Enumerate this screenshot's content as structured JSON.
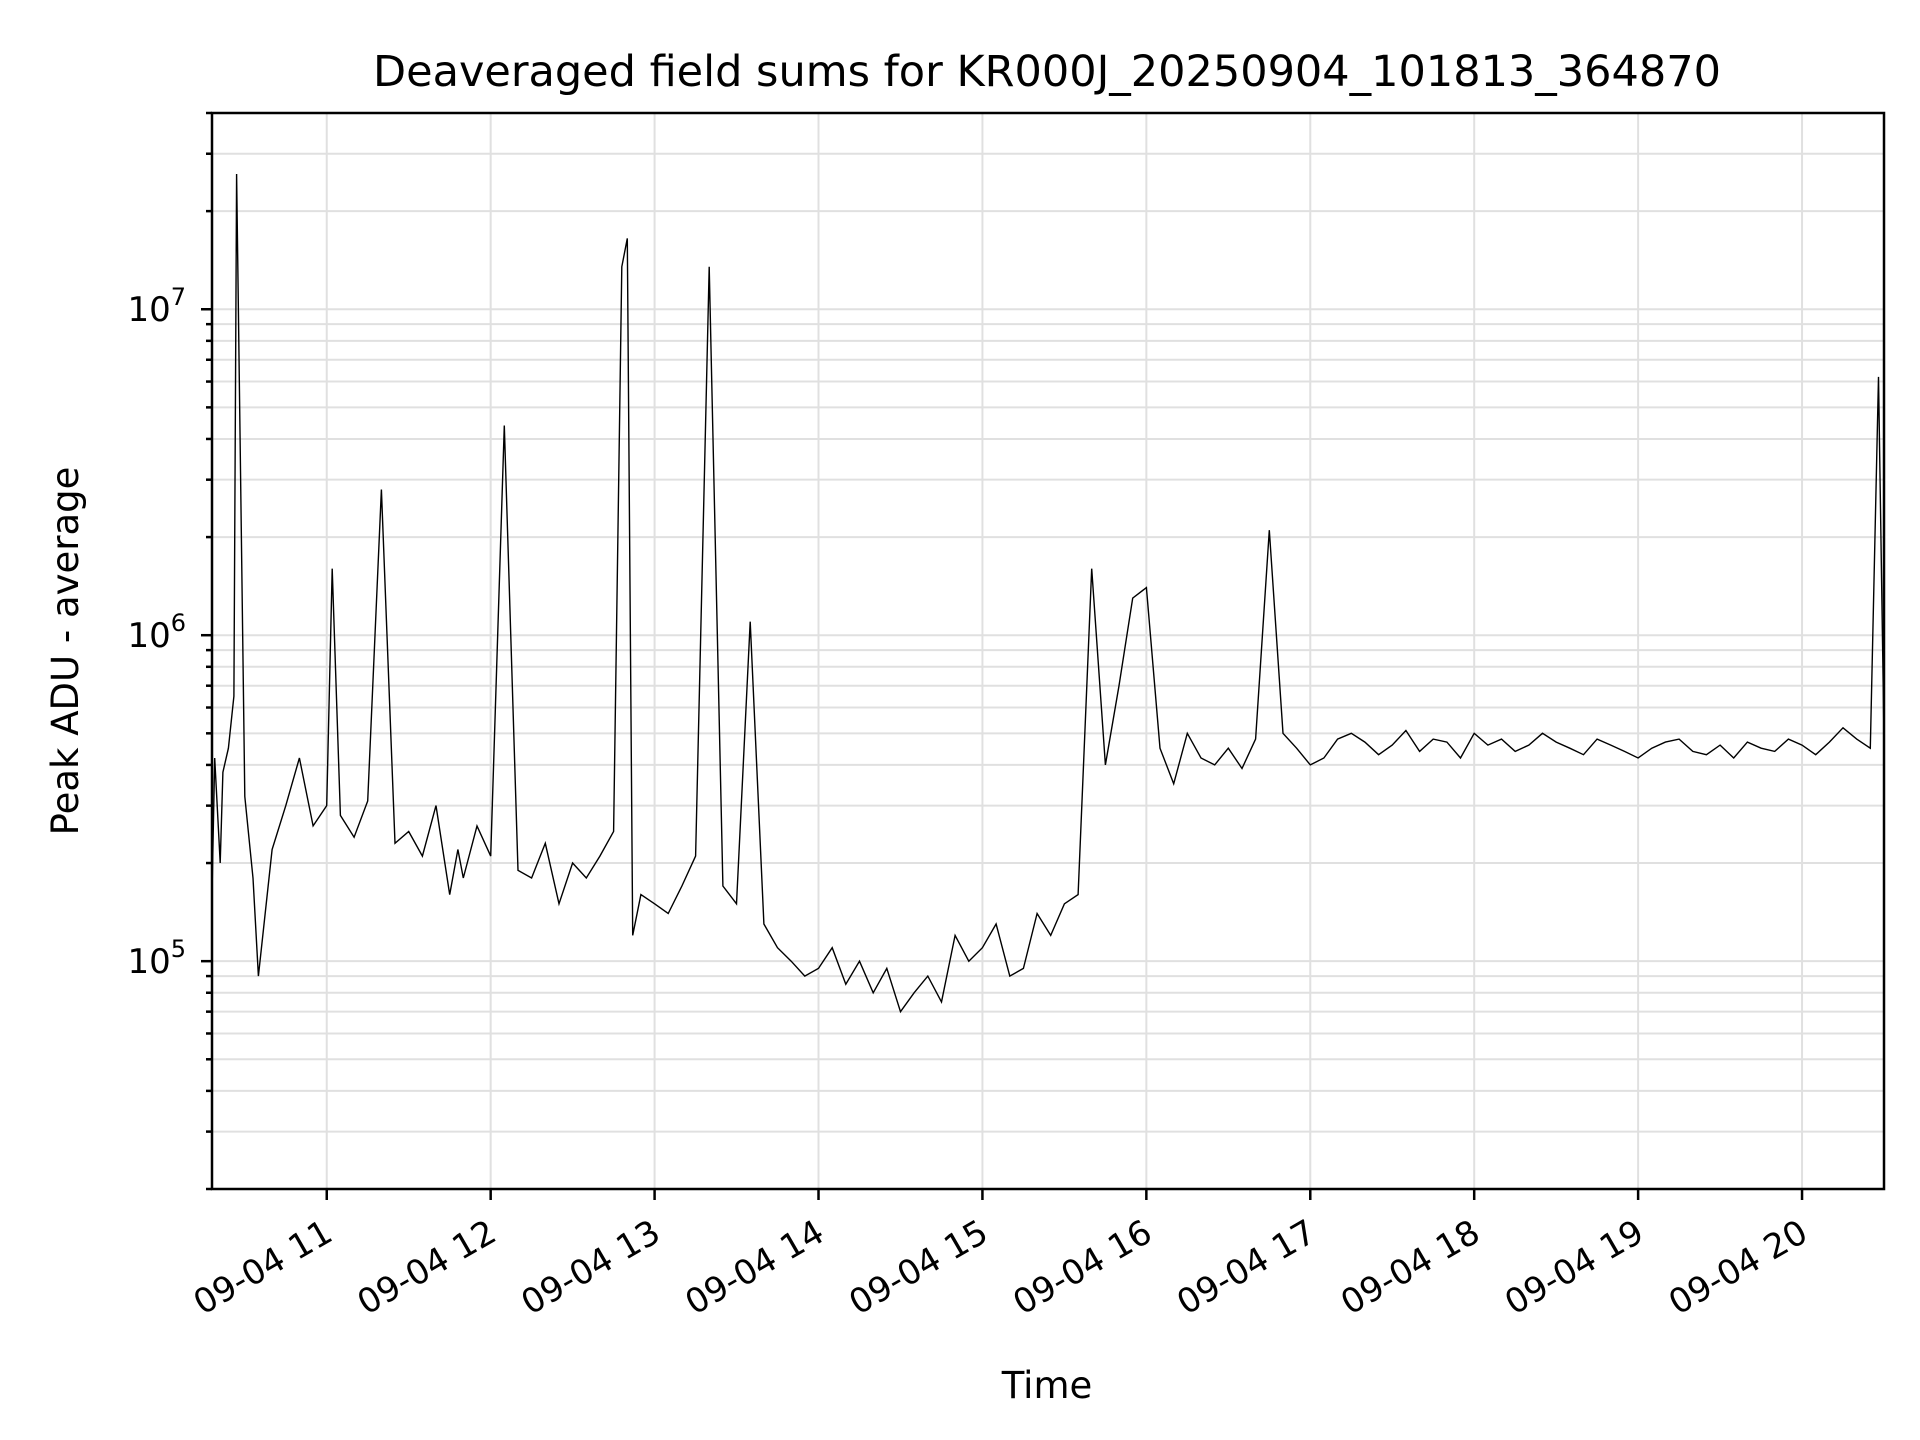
{
  "chart_data": {
    "type": "line",
    "title": "Deaveraged field sums for KR000J_20250904_101813_364870",
    "xlabel": "Time",
    "ylabel": "Peak ADU - average",
    "x_axis": {
      "kind": "datetime",
      "range": [
        "2025-09-04 10:18",
        "2025-09-04 20:30"
      ],
      "ticks": [
        "09-04 11",
        "09-04 12",
        "09-04 13",
        "09-04 14",
        "09-04 15",
        "09-04 16",
        "09-04 17",
        "09-04 18",
        "09-04 19",
        "09-04 20"
      ]
    },
    "y_axis": {
      "scale": "log",
      "range": [
        20000,
        40000000
      ],
      "major_ticks": [
        {
          "value": 100000,
          "base": "10",
          "exp": "5"
        },
        {
          "value": 1000000,
          "base": "10",
          "exp": "6"
        },
        {
          "value": 10000000,
          "base": "10",
          "exp": "7"
        }
      ]
    },
    "grid": "major and minor",
    "line_color": "#000000",
    "series": [
      {
        "x": [
          "10:18",
          "10:19",
          "10:21",
          "10:22",
          "10:24",
          "10:26",
          "10:27",
          "10:30",
          "10:33",
          "10:35",
          "10:40",
          "10:45",
          "10:50",
          "10:55",
          "11:00",
          "11:02",
          "11:05",
          "11:10",
          "11:15",
          "11:20",
          "11:25",
          "11:30",
          "11:35",
          "11:40",
          "11:45",
          "11:48",
          "11:50",
          "11:55",
          "12:00",
          "12:05",
          "12:10",
          "12:15",
          "12:20",
          "12:25",
          "12:30",
          "12:35",
          "12:40",
          "12:45",
          "12:48",
          "12:50",
          "12:52",
          "12:55",
          "13:00",
          "13:05",
          "13:10",
          "13:15",
          "13:20",
          "13:25",
          "13:30",
          "13:35",
          "13:40",
          "13:45",
          "13:50",
          "13:55",
          "14:00",
          "14:05",
          "14:10",
          "14:15",
          "14:20",
          "14:25",
          "14:30",
          "14:35",
          "14:40",
          "14:45",
          "14:50",
          "14:55",
          "15:00",
          "15:05",
          "15:10",
          "15:15",
          "15:20",
          "15:25",
          "15:30",
          "15:35",
          "15:40",
          "15:45",
          "15:50",
          "15:55",
          "16:00",
          "16:05",
          "16:10",
          "16:15",
          "16:20",
          "16:25",
          "16:30",
          "16:35",
          "16:40",
          "16:45",
          "16:50",
          "16:55",
          "17:00",
          "17:05",
          "17:10",
          "17:15",
          "17:20",
          "17:25",
          "17:30",
          "17:35",
          "17:40",
          "17:45",
          "17:50",
          "17:55",
          "18:00",
          "18:05",
          "18:10",
          "18:15",
          "18:20",
          "18:25",
          "18:30",
          "18:35",
          "18:40",
          "18:45",
          "18:50",
          "18:55",
          "19:00",
          "19:05",
          "19:10",
          "19:15",
          "19:20",
          "19:25",
          "19:30",
          "19:35",
          "19:40",
          "19:45",
          "19:50",
          "19:55",
          "20:00",
          "20:05",
          "20:10",
          "20:15",
          "20:20",
          "20:25",
          "20:28",
          "20:30"
        ],
        "y": [
          160000,
          420000,
          200000,
          380000,
          450000,
          650000,
          26000000,
          320000,
          180000,
          90000,
          220000,
          300000,
          420000,
          260000,
          300000,
          1600000,
          280000,
          240000,
          310000,
          2800000,
          230000,
          250000,
          210000,
          300000,
          160000,
          220000,
          180000,
          260000,
          210000,
          4400000,
          190000,
          180000,
          230000,
          150000,
          200000,
          180000,
          210000,
          250000,
          13500000,
          16500000,
          120000,
          160000,
          150000,
          140000,
          170000,
          210000,
          13500000,
          170000,
          150000,
          1100000,
          130000,
          110000,
          100000,
          90000,
          95000,
          110000,
          85000,
          100000,
          80000,
          95000,
          70000,
          80000,
          90000,
          75000,
          120000,
          100000,
          110000,
          130000,
          90000,
          95000,
          140000,
          120000,
          150000,
          160000,
          1600000,
          400000,
          700000,
          1300000,
          1400000,
          450000,
          350000,
          500000,
          420000,
          400000,
          450000,
          390000,
          480000,
          2100000,
          500000,
          450000,
          400000,
          420000,
          480000,
          500000,
          470000,
          430000,
          460000,
          510000,
          440000,
          480000,
          470000,
          420000,
          500000,
          460000,
          480000,
          440000,
          460000,
          500000,
          470000,
          450000,
          430000,
          480000,
          460000,
          440000,
          420000,
          450000,
          470000,
          480000,
          440000,
          430000,
          460000,
          420000,
          470000,
          450000,
          440000,
          480000,
          460000,
          430000,
          470000,
          520000,
          480000,
          450000,
          6200000,
          480000
        ]
      }
    ]
  }
}
